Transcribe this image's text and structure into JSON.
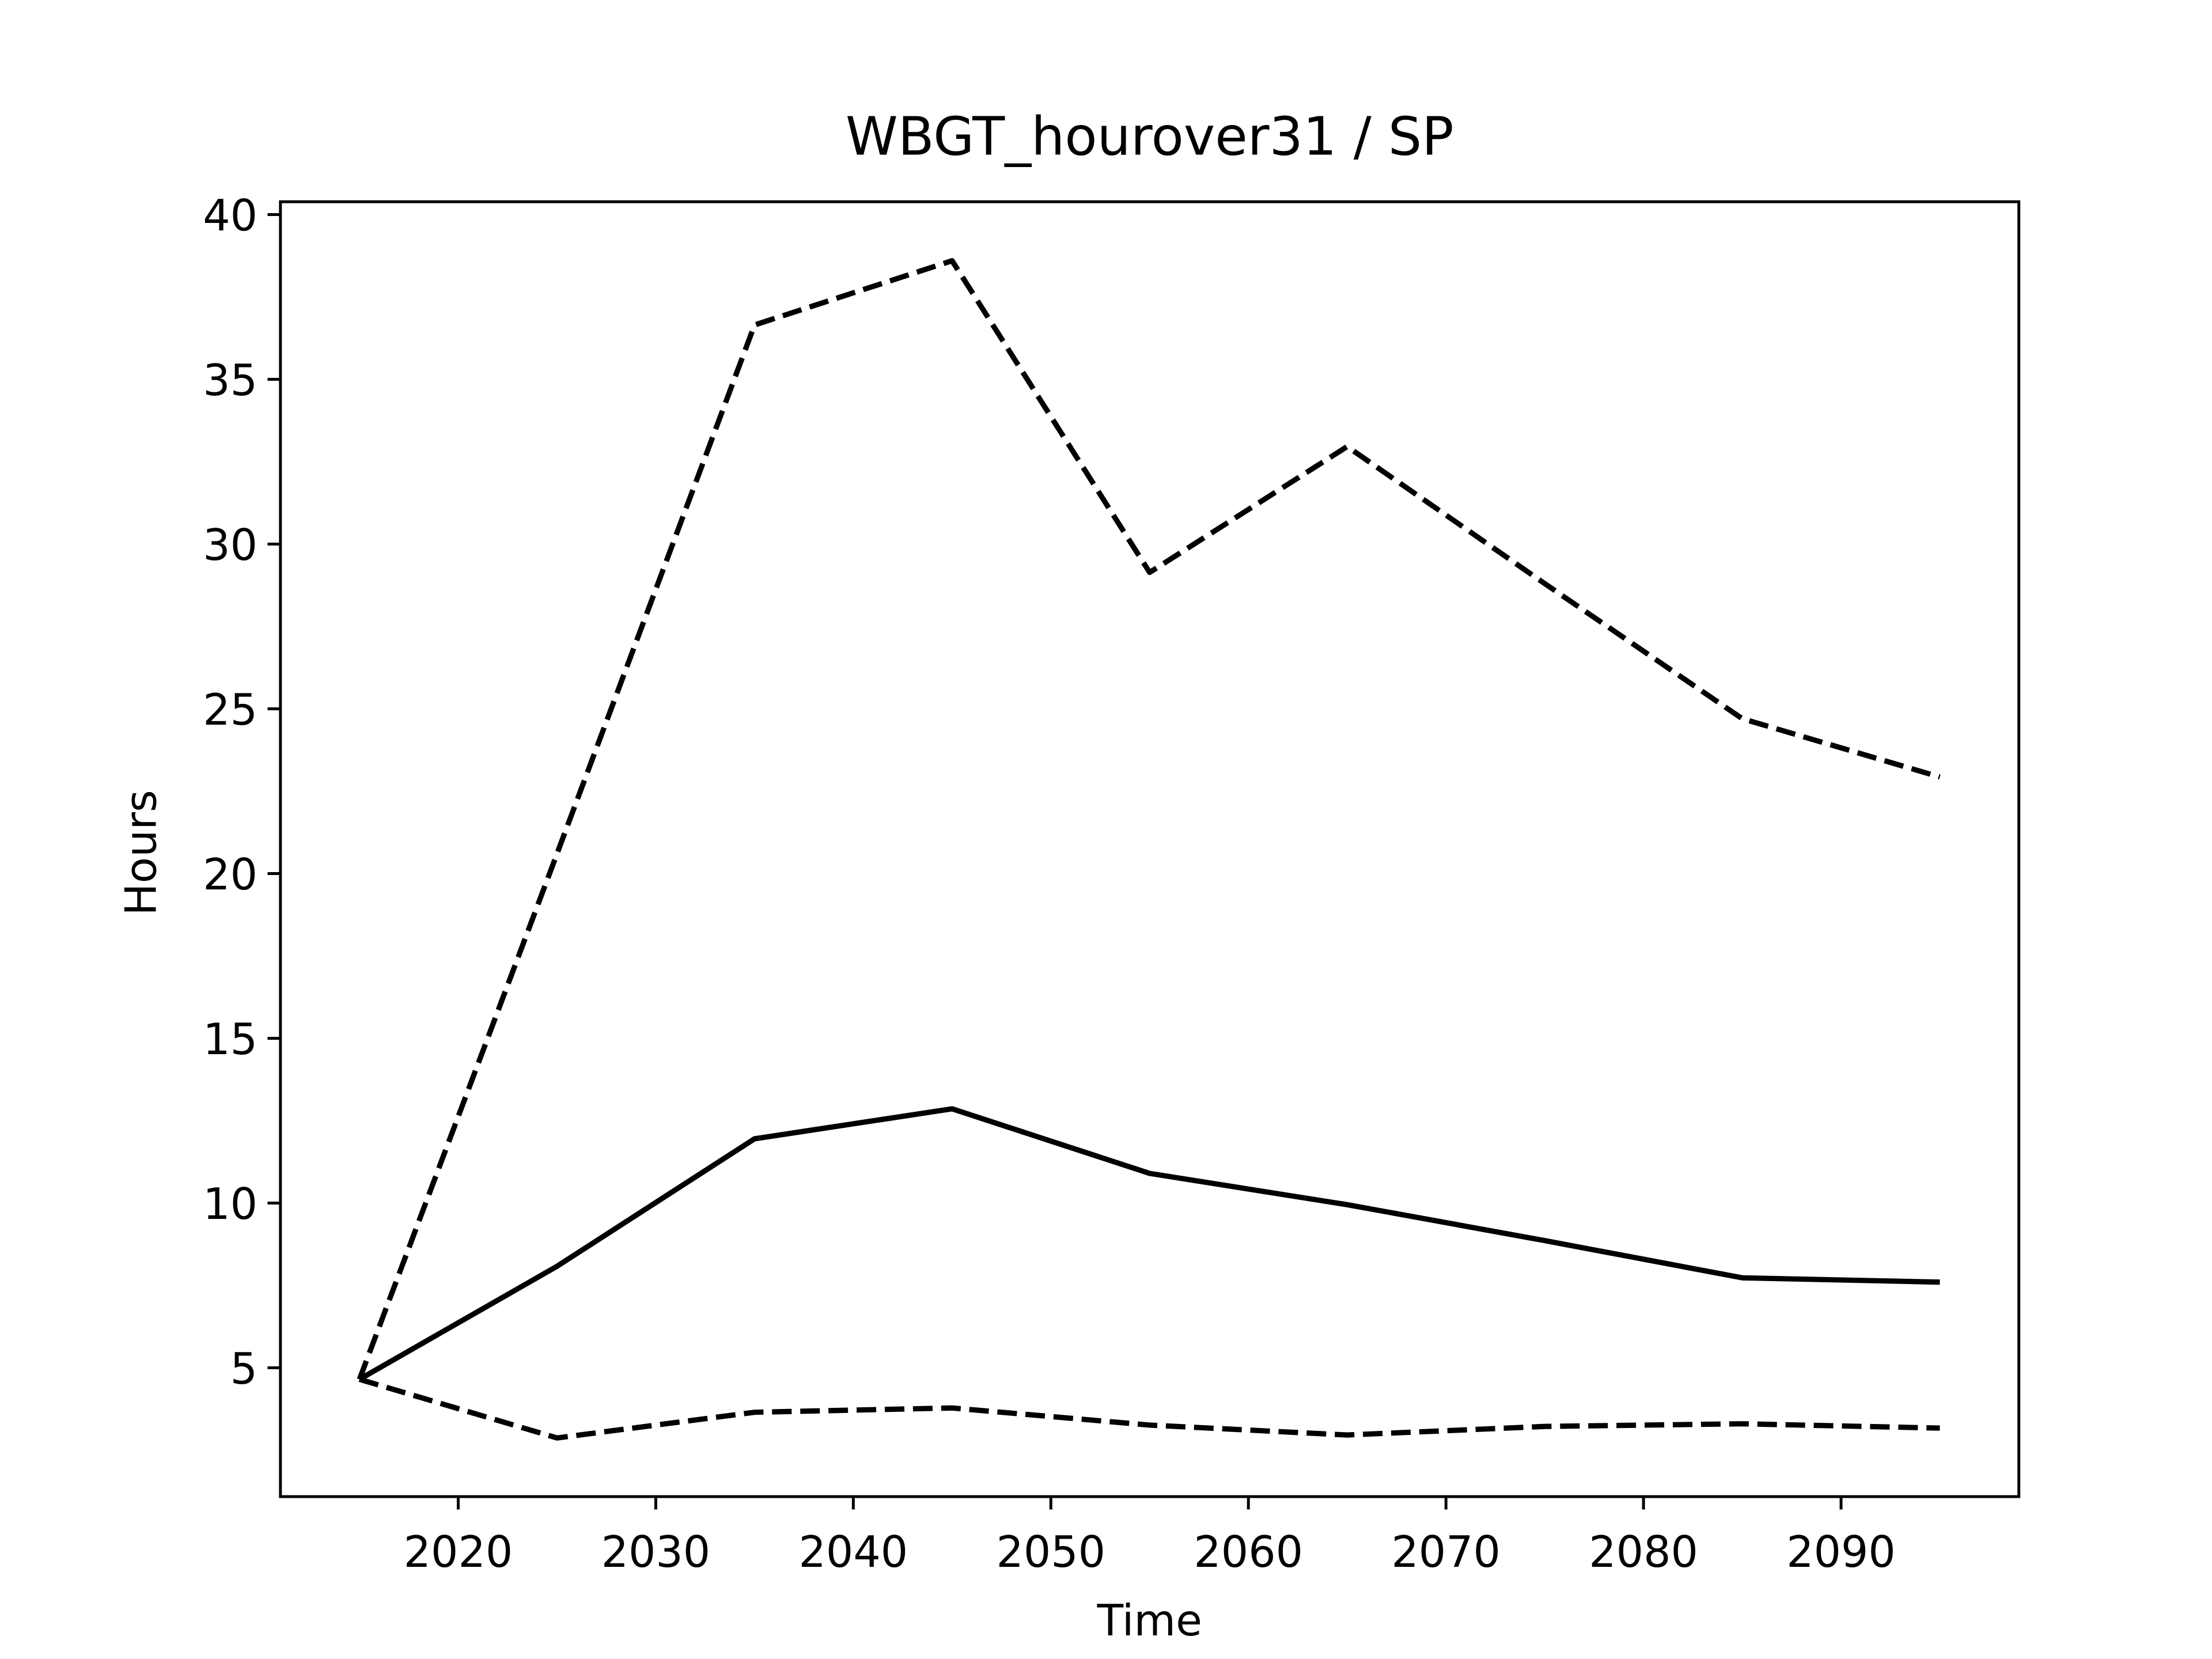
{
  "chart_data": {
    "type": "line",
    "title": "WBGT_hourover31 / SP",
    "x_label": "Time",
    "y_label": "Hours",
    "x": [
      2015,
      2025,
      2035,
      2045,
      2055,
      2065,
      2075,
      2085,
      2095
    ],
    "series": [
      {
        "color": "#000000",
        "linestyle": "solid",
        "values": [
          4.65,
          8.08,
          11.95,
          12.86,
          10.9,
          9.95,
          8.86,
          7.73,
          7.6
        ]
      },
      {
        "color": "#000000",
        "linestyle": "dashed",
        "values": [
          4.65,
          20.6,
          36.65,
          38.6,
          29.14,
          32.96,
          28.8,
          24.7,
          22.93
        ]
      },
      {
        "color": "#000000",
        "linestyle": "dashed",
        "values": [
          4.65,
          2.87,
          3.65,
          3.78,
          3.26,
          2.96,
          3.22,
          3.3,
          3.17
        ]
      }
    ],
    "xlim": [
      2011,
      2099
    ],
    "xticks": [
      2020,
      2030,
      2040,
      2050,
      2060,
      2070,
      2080,
      2090
    ],
    "ylim": [
      1.09,
      40.39
    ],
    "yticks": [
      5,
      10,
      15,
      20,
      25,
      30,
      35,
      40
    ],
    "grid": false
  }
}
